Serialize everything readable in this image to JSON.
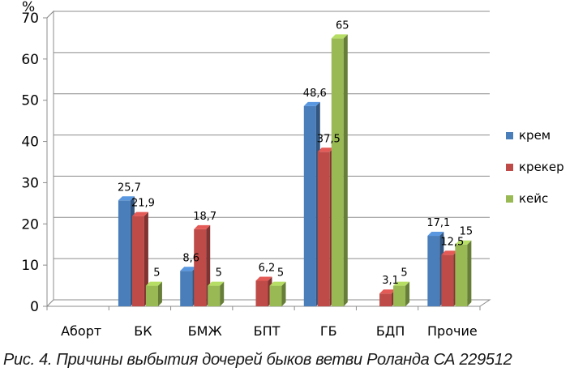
{
  "chart_data": {
    "type": "bar",
    "style": "3d-clustered-column",
    "ylabel": "%",
    "ylim": [
      0,
      70
    ],
    "yticks": [
      0,
      10,
      20,
      30,
      40,
      50,
      60,
      70
    ],
    "grid": true,
    "legend_position": "right",
    "categories": [
      "Аборт",
      "БК",
      "БМЖ",
      "БПТ",
      "ГБ",
      "БДП",
      "Прочие"
    ],
    "series": [
      {
        "name": "крем",
        "color": "#4A7EBB",
        "values": [
          null,
          25.7,
          8.6,
          null,
          48.6,
          null,
          17.1
        ],
        "labels": [
          "",
          "25,7",
          "8,6",
          "",
          "48,6",
          "",
          "17,1"
        ]
      },
      {
        "name": "крекер",
        "color": "#BE4B48",
        "values": [
          null,
          21.9,
          18.7,
          6.2,
          37.5,
          3.1,
          12.5
        ],
        "labels": [
          "",
          "21,9",
          "18,7",
          "6,2",
          "37,5",
          "3,1",
          "12,5"
        ]
      },
      {
        "name": "кейс",
        "color": "#98B954",
        "values": [
          null,
          5,
          5,
          5,
          65,
          5,
          15
        ],
        "labels": [
          "",
          "5",
          "5",
          "5",
          "65",
          "5",
          "15"
        ]
      }
    ]
  },
  "caption": "Рис. 4. Причины выбытия дочерей быков ветви Роланда СА 229512"
}
